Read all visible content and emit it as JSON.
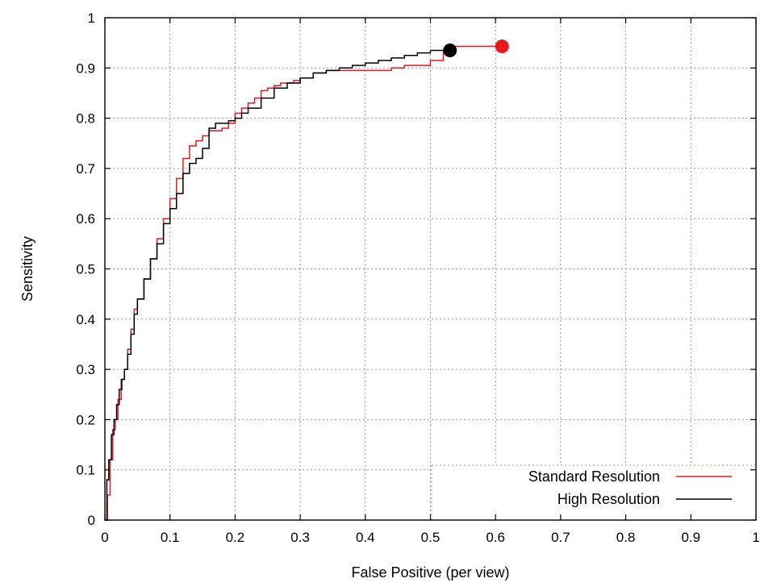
{
  "chart_data": {
    "type": "line",
    "title": "",
    "xlabel": "False Positive (per view)",
    "ylabel": "Sensitivity",
    "xlim": [
      0,
      1
    ],
    "ylim": [
      0,
      1
    ],
    "xticks": [
      "0",
      "0.1",
      "0.2",
      "0.3",
      "0.4",
      "0.5",
      "0.6",
      "0.7",
      "0.8",
      "0.9",
      "1"
    ],
    "yticks": [
      "0",
      "0.1",
      "0.2",
      "0.3",
      "0.4",
      "0.5",
      "0.6",
      "0.7",
      "0.8",
      "0.9",
      "1"
    ],
    "grid": true,
    "legend_position": "bottom-right",
    "series": [
      {
        "name": "Standard Resolution",
        "color": "#e8191f",
        "x": [
          0,
          0.004,
          0.008,
          0.012,
          0.016,
          0.02,
          0.025,
          0.03,
          0.035,
          0.04,
          0.045,
          0.05,
          0.06,
          0.07,
          0.08,
          0.09,
          0.1,
          0.11,
          0.12,
          0.13,
          0.14,
          0.15,
          0.16,
          0.17,
          0.18,
          0.19,
          0.2,
          0.21,
          0.22,
          0.23,
          0.24,
          0.25,
          0.26,
          0.27,
          0.28,
          0.29,
          0.3,
          0.32,
          0.34,
          0.36,
          0.38,
          0.4,
          0.42,
          0.44,
          0.46,
          0.48,
          0.5,
          0.52,
          0.53,
          0.56,
          0.58,
          0.61
        ],
        "y": [
          0,
          0.05,
          0.12,
          0.18,
          0.2,
          0.24,
          0.28,
          0.3,
          0.34,
          0.38,
          0.42,
          0.44,
          0.48,
          0.52,
          0.56,
          0.6,
          0.64,
          0.68,
          0.72,
          0.745,
          0.755,
          0.765,
          0.775,
          0.775,
          0.78,
          0.79,
          0.81,
          0.82,
          0.83,
          0.84,
          0.855,
          0.86,
          0.865,
          0.87,
          0.87,
          0.875,
          0.88,
          0.89,
          0.895,
          0.895,
          0.895,
          0.895,
          0.895,
          0.9,
          0.905,
          0.905,
          0.915,
          0.935,
          0.943,
          0.943,
          0.943,
          0.943
        ]
      },
      {
        "name": "High Resolution",
        "color": "#000000",
        "x": [
          0,
          0.003,
          0.006,
          0.01,
          0.014,
          0.018,
          0.022,
          0.026,
          0.03,
          0.035,
          0.04,
          0.045,
          0.05,
          0.06,
          0.07,
          0.08,
          0.09,
          0.1,
          0.11,
          0.12,
          0.13,
          0.14,
          0.15,
          0.16,
          0.17,
          0.18,
          0.19,
          0.2,
          0.21,
          0.22,
          0.24,
          0.26,
          0.28,
          0.3,
          0.32,
          0.34,
          0.36,
          0.38,
          0.4,
          0.42,
          0.44,
          0.46,
          0.48,
          0.5,
          0.52,
          0.53
        ],
        "y": [
          0,
          0.08,
          0.12,
          0.17,
          0.2,
          0.23,
          0.26,
          0.28,
          0.3,
          0.33,
          0.37,
          0.41,
          0.44,
          0.48,
          0.52,
          0.55,
          0.59,
          0.62,
          0.65,
          0.69,
          0.71,
          0.72,
          0.74,
          0.78,
          0.79,
          0.79,
          0.795,
          0.8,
          0.81,
          0.82,
          0.84,
          0.86,
          0.87,
          0.88,
          0.89,
          0.895,
          0.9,
          0.905,
          0.91,
          0.915,
          0.92,
          0.925,
          0.93,
          0.935,
          0.935,
          0.935
        ]
      }
    ],
    "endpoints": [
      {
        "series": "High Resolution",
        "x": 0.53,
        "y": 0.935,
        "color": "#000000"
      },
      {
        "series": "Standard Resolution",
        "x": 0.61,
        "y": 0.943,
        "color": "#e8191f"
      }
    ]
  }
}
